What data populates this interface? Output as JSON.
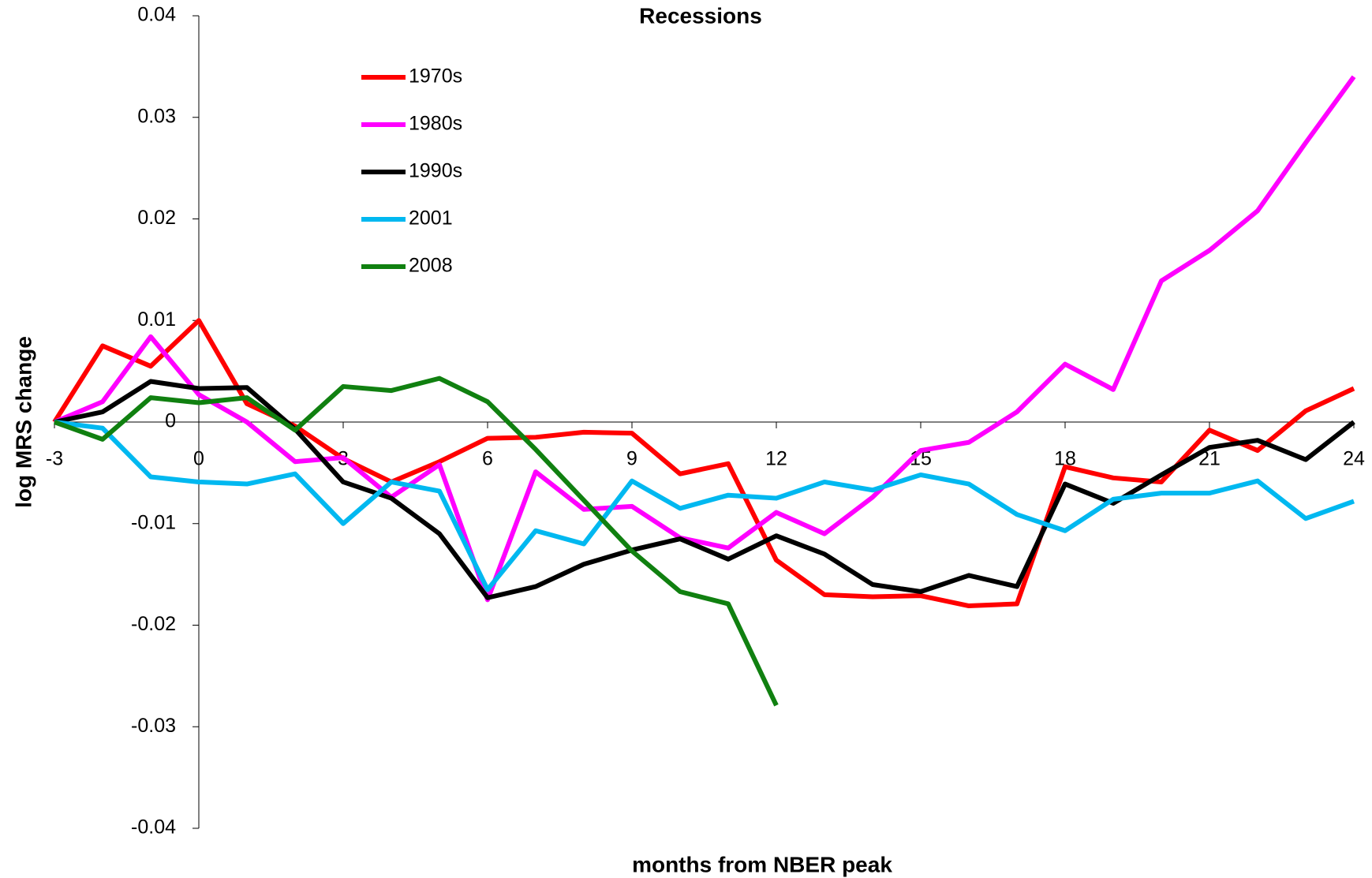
{
  "chart_data": {
    "type": "line",
    "title": "Recessions",
    "xlabel": "months from NBER peak",
    "ylabel": "log MRS change",
    "x": [
      -3,
      -2,
      -1,
      0,
      1,
      2,
      3,
      4,
      5,
      6,
      7,
      8,
      9,
      10,
      11,
      12,
      13,
      14,
      15,
      16,
      17,
      18,
      19,
      20,
      21,
      22,
      23,
      24
    ],
    "xlim": [
      -3,
      24
    ],
    "xticks": [
      -3,
      0,
      3,
      6,
      9,
      12,
      15,
      18,
      21,
      24
    ],
    "ylim": [
      -0.04,
      0.04
    ],
    "yticks": [
      0.04,
      0.03,
      0.02,
      0.01,
      0,
      -0.01,
      -0.02,
      -0.03,
      -0.04
    ],
    "grid": false,
    "legend": "top-center",
    "series": [
      {
        "name": "1970s",
        "color": "#ff0000",
        "values": [
          0,
          0.0075,
          0.0055,
          0.01,
          0.0018,
          -0.0004,
          -0.0036,
          -0.0059,
          -0.0039,
          -0.0016,
          -0.0015,
          -0.001,
          -0.0011,
          -0.0051,
          -0.0041,
          -0.0136,
          -0.017,
          -0.0172,
          -0.0171,
          -0.0181,
          -0.0179,
          -0.0044,
          -0.0055,
          -0.0059,
          -0.0008,
          -0.0028,
          0.0011,
          0.0033
        ]
      },
      {
        "name": "1980s",
        "color": "#ff00ff",
        "values": [
          0,
          0.002,
          0.0084,
          0.0027,
          0,
          -0.0039,
          -0.0035,
          -0.0074,
          -0.0042,
          -0.0175,
          -0.0049,
          -0.0086,
          -0.0083,
          -0.0114,
          -0.0124,
          -0.0089,
          -0.011,
          -0.0074,
          -0.0028,
          -0.002,
          0.001,
          0.0057,
          0.0032,
          0.0139,
          0.0169,
          0.0208,
          0.0275,
          0.034
        ]
      },
      {
        "name": "1990s",
        "color": "#000000",
        "values": [
          0,
          0.001,
          0.004,
          0.0033,
          0.0034,
          -0.0007,
          -0.0059,
          -0.0075,
          -0.011,
          -0.0173,
          -0.0162,
          -0.014,
          -0.0126,
          -0.0115,
          -0.0135,
          -0.0112,
          -0.013,
          -0.016,
          -0.0167,
          -0.0151,
          -0.0162,
          -0.0061,
          -0.008,
          -0.0052,
          -0.0025,
          -0.0018,
          -0.0037,
          0
        ]
      },
      {
        "name": "2001",
        "color": "#00b8f0",
        "values": [
          0,
          -0.0006,
          -0.0054,
          -0.0059,
          -0.0061,
          -0.0051,
          -0.01,
          -0.0059,
          -0.0068,
          -0.0165,
          -0.0107,
          -0.012,
          -0.0058,
          -0.0085,
          -0.0072,
          -0.0075,
          -0.0059,
          -0.0067,
          -0.0052,
          -0.0061,
          -0.0091,
          -0.0107,
          -0.0076,
          -0.007,
          -0.007,
          -0.0058,
          -0.0095,
          -0.0078
        ]
      },
      {
        "name": "2008",
        "color": "#108010",
        "values": [
          0,
          -0.0017,
          0.0024,
          0.0019,
          0.0024,
          -0.0008,
          0.0035,
          0.0031,
          0.0043,
          0.002,
          -0.0027,
          -0.0077,
          -0.0127,
          -0.0167,
          -0.0179,
          -0.0279,
          null,
          null,
          null,
          null,
          null,
          null,
          null,
          null,
          null,
          null,
          null,
          null
        ]
      }
    ]
  }
}
